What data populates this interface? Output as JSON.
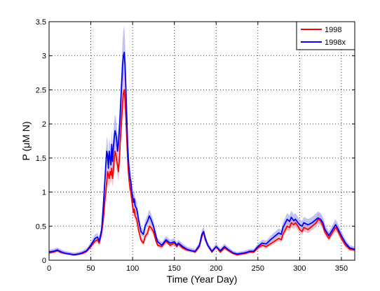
{
  "chart_data": {
    "type": "line",
    "title": "",
    "xlabel": "Time (Year Day)",
    "ylabel": "P (μM N)",
    "xlim": [
      0,
      366
    ],
    "ylim": [
      0,
      3.5
    ],
    "xticks": [
      0,
      50,
      100,
      150,
      200,
      250,
      300,
      350
    ],
    "yticks": [
      0,
      0.5,
      1,
      1.5,
      2,
      2.5,
      3,
      3.5
    ],
    "xtick_labels": [
      "0",
      "50",
      "100",
      "150",
      "200",
      "250",
      "300",
      "350"
    ],
    "ytick_labels": [
      "0",
      "0.5",
      "1",
      "1.5",
      "2",
      "2.5",
      "3",
      "3.5"
    ],
    "grid": true,
    "legend_position": "top-right",
    "series": [
      {
        "name": "1998",
        "color": "#ff0000",
        "band_color": "#f0a8b4",
        "x": [
          0,
          5,
          10,
          15,
          20,
          25,
          30,
          35,
          40,
          45,
          50,
          55,
          58,
          60,
          63,
          65,
          67,
          68,
          69,
          70,
          71,
          72,
          73,
          74,
          75,
          76,
          77,
          78,
          79,
          80,
          81,
          82,
          83,
          84,
          85,
          86,
          87,
          88,
          89,
          90,
          91,
          92,
          93,
          94,
          95,
          96,
          97,
          98,
          99,
          100,
          101,
          102,
          103,
          105,
          107,
          110,
          113,
          115,
          118,
          120,
          122,
          125,
          128,
          130,
          135,
          140,
          145,
          150,
          153,
          155,
          158,
          160,
          165,
          170,
          175,
          180,
          183,
          185,
          187,
          190,
          195,
          200,
          205,
          210,
          215,
          220,
          225,
          230,
          235,
          240,
          245,
          250,
          255,
          260,
          265,
          270,
          275,
          278,
          280,
          283,
          285,
          288,
          290,
          293,
          295,
          298,
          300,
          303,
          305,
          310,
          315,
          320,
          322,
          325,
          328,
          330,
          335,
          340,
          343,
          345,
          350,
          355,
          360,
          366
        ],
        "y": [
          0.11,
          0.12,
          0.14,
          0.11,
          0.1,
          0.09,
          0.08,
          0.09,
          0.1,
          0.13,
          0.2,
          0.28,
          0.3,
          0.25,
          0.4,
          0.6,
          0.9,
          1.0,
          1.15,
          1.3,
          1.25,
          1.2,
          1.3,
          1.25,
          1.35,
          1.2,
          1.3,
          1.5,
          1.6,
          1.55,
          1.45,
          1.4,
          1.3,
          1.45,
          1.7,
          1.9,
          2.1,
          2.3,
          2.45,
          2.5,
          2.35,
          2.1,
          1.8,
          1.5,
          1.3,
          1.15,
          1.05,
          1.0,
          0.9,
          0.8,
          0.7,
          0.75,
          0.65,
          0.6,
          0.45,
          0.3,
          0.25,
          0.35,
          0.4,
          0.5,
          0.48,
          0.42,
          0.28,
          0.22,
          0.2,
          0.28,
          0.22,
          0.25,
          0.2,
          0.24,
          0.2,
          0.18,
          0.15,
          0.14,
          0.12,
          0.2,
          0.35,
          0.42,
          0.3,
          0.22,
          0.12,
          0.2,
          0.12,
          0.18,
          0.14,
          0.1,
          0.08,
          0.09,
          0.1,
          0.12,
          0.12,
          0.18,
          0.22,
          0.2,
          0.24,
          0.28,
          0.32,
          0.3,
          0.38,
          0.45,
          0.5,
          0.48,
          0.55,
          0.52,
          0.55,
          0.5,
          0.45,
          0.42,
          0.48,
          0.45,
          0.5,
          0.55,
          0.6,
          0.58,
          0.5,
          0.42,
          0.32,
          0.42,
          0.48,
          0.45,
          0.32,
          0.22,
          0.16,
          0.15
        ]
      },
      {
        "name": "1998x",
        "color": "#0000ff",
        "band_color": "#a8acf0",
        "x": [
          0,
          5,
          10,
          15,
          20,
          25,
          30,
          35,
          40,
          45,
          50,
          55,
          58,
          60,
          63,
          65,
          67,
          68,
          69,
          70,
          71,
          72,
          73,
          74,
          75,
          76,
          77,
          78,
          79,
          80,
          81,
          82,
          83,
          84,
          85,
          86,
          87,
          88,
          89,
          90,
          91,
          92,
          93,
          94,
          95,
          96,
          97,
          98,
          99,
          100,
          101,
          102,
          103,
          105,
          107,
          110,
          113,
          115,
          118,
          120,
          122,
          125,
          128,
          130,
          135,
          140,
          145,
          150,
          153,
          155,
          158,
          160,
          165,
          170,
          175,
          180,
          183,
          185,
          187,
          190,
          195,
          200,
          205,
          210,
          215,
          220,
          225,
          230,
          235,
          240,
          245,
          250,
          255,
          260,
          265,
          270,
          275,
          278,
          280,
          283,
          285,
          288,
          290,
          293,
          295,
          298,
          300,
          303,
          305,
          310,
          315,
          320,
          322,
          325,
          328,
          330,
          335,
          340,
          343,
          345,
          350,
          355,
          360,
          366
        ],
        "y": [
          0.12,
          0.13,
          0.15,
          0.12,
          0.1,
          0.09,
          0.08,
          0.09,
          0.11,
          0.14,
          0.22,
          0.32,
          0.34,
          0.28,
          0.45,
          0.8,
          1.2,
          1.4,
          1.6,
          1.55,
          1.35,
          1.6,
          1.5,
          1.4,
          1.7,
          1.45,
          1.65,
          1.8,
          1.9,
          1.85,
          1.75,
          1.6,
          1.7,
          1.9,
          2.1,
          2.35,
          2.6,
          2.85,
          3.0,
          3.05,
          2.85,
          2.5,
          2.1,
          1.7,
          1.45,
          1.3,
          1.2,
          1.15,
          1.0,
          0.95,
          0.85,
          0.9,
          0.8,
          0.75,
          0.6,
          0.42,
          0.38,
          0.5,
          0.58,
          0.65,
          0.6,
          0.5,
          0.35,
          0.27,
          0.22,
          0.3,
          0.25,
          0.27,
          0.22,
          0.25,
          0.22,
          0.2,
          0.16,
          0.14,
          0.13,
          0.22,
          0.38,
          0.42,
          0.32,
          0.22,
          0.13,
          0.2,
          0.14,
          0.2,
          0.15,
          0.11,
          0.09,
          0.1,
          0.11,
          0.13,
          0.13,
          0.2,
          0.25,
          0.24,
          0.3,
          0.35,
          0.4,
          0.38,
          0.48,
          0.55,
          0.6,
          0.57,
          0.63,
          0.58,
          0.6,
          0.55,
          0.52,
          0.5,
          0.55,
          0.52,
          0.55,
          0.6,
          0.62,
          0.6,
          0.55,
          0.46,
          0.36,
          0.46,
          0.52,
          0.48,
          0.36,
          0.25,
          0.18,
          0.16
        ]
      }
    ]
  }
}
